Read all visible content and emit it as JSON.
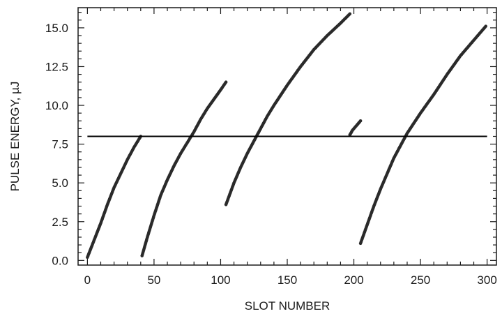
{
  "chart_data": {
    "type": "scatter",
    "xlabel": "SLOT NUMBER",
    "ylabel": "PULSE ENERGY, µJ",
    "xlim": [
      -7,
      307
    ],
    "ylim": [
      -0.3,
      16.3
    ],
    "x_ticks": [
      0,
      50,
      100,
      150,
      200,
      250,
      300
    ],
    "x_tick_labels": [
      "0",
      "50",
      "100",
      "150",
      "200",
      "250",
      "300"
    ],
    "y_ticks": [
      0,
      2.5,
      5,
      7.5,
      10,
      12.5,
      15
    ],
    "y_tick_labels": [
      "0.0",
      "2.5",
      "5.0",
      "7.5",
      "10.0",
      "12.5",
      "15.0"
    ],
    "x_minor_step": 10,
    "y_minor_step": 0.5,
    "grid": false,
    "threshold": {
      "y": 8.0,
      "x_range": [
        0,
        300
      ]
    },
    "series": [
      {
        "x": [
          0,
          5,
          10,
          15,
          20,
          25,
          30,
          35,
          40
        ],
        "values": [
          0.2,
          1.3,
          2.4,
          3.6,
          4.7,
          5.6,
          6.5,
          7.3,
          8.0
        ]
      },
      {
        "x": [
          41,
          45,
          50,
          55,
          60,
          65,
          70,
          75,
          80,
          85,
          90,
          95,
          100,
          104
        ],
        "values": [
          0.3,
          1.5,
          2.9,
          4.2,
          5.2,
          6.1,
          6.9,
          7.6,
          8.3,
          9.1,
          9.8,
          10.4,
          11.0,
          11.5
        ]
      },
      {
        "x": [
          104,
          110,
          115,
          120,
          125,
          130,
          135,
          140,
          150,
          160,
          170,
          180,
          190,
          197
        ],
        "values": [
          3.6,
          5.0,
          6.0,
          6.9,
          7.7,
          8.5,
          9.3,
          10.0,
          11.3,
          12.5,
          13.6,
          14.5,
          15.3,
          15.9
        ]
      },
      {
        "x": [
          197,
          199,
          201,
          203,
          205
        ],
        "values": [
          8.1,
          8.4,
          8.6,
          8.8,
          9.0
        ]
      },
      {
        "x": [
          205,
          210,
          215,
          220,
          225,
          230,
          235,
          240,
          250,
          260,
          270,
          280,
          290,
          299
        ],
        "values": [
          1.1,
          2.3,
          3.5,
          4.6,
          5.6,
          6.6,
          7.4,
          8.2,
          9.5,
          10.7,
          12.0,
          13.2,
          14.2,
          15.1
        ]
      }
    ],
    "marker_color": "#2a2a2a",
    "line_color": "#000000",
    "axis_color": "#1a1a1a"
  }
}
